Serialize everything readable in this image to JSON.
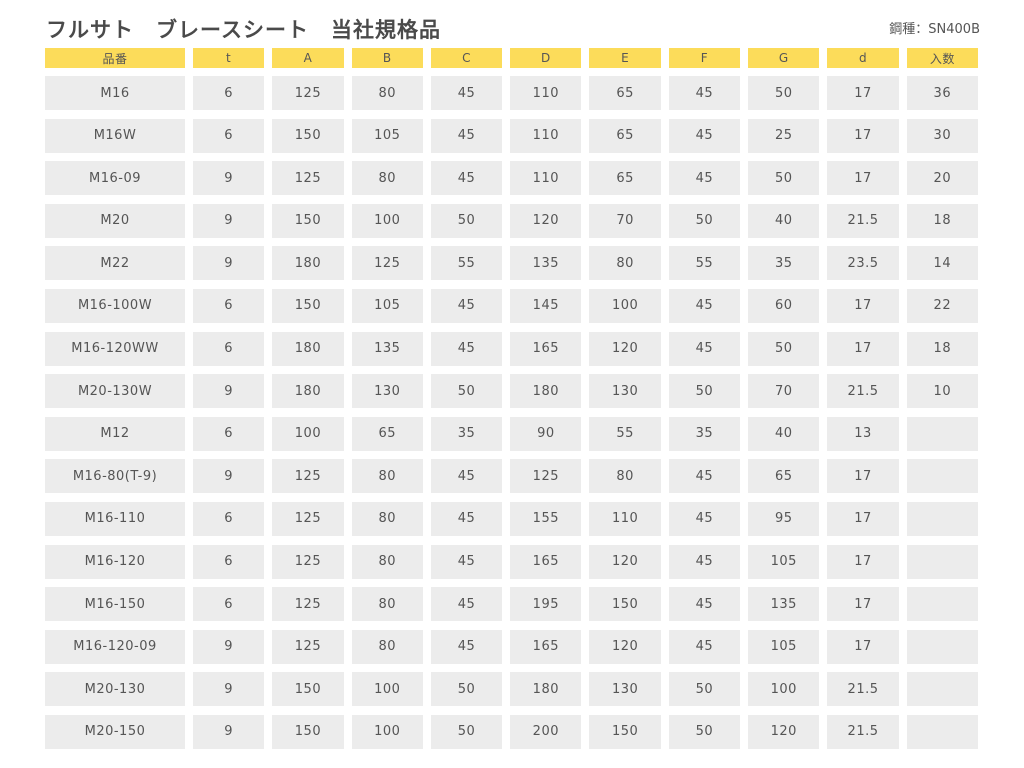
{
  "title": "フルサト　ブレースシート　当社規格品",
  "material_label": "鋼種：SN400B",
  "table": {
    "headers": [
      "品番",
      "t",
      "A",
      "B",
      "C",
      "D",
      "E",
      "F",
      "G",
      "d",
      "入数"
    ],
    "rows": [
      [
        "M16",
        "6",
        "125",
        "80",
        "45",
        "110",
        "65",
        "45",
        "50",
        "17",
        "36"
      ],
      [
        "M16W",
        "6",
        "150",
        "105",
        "45",
        "110",
        "65",
        "45",
        "25",
        "17",
        "30"
      ],
      [
        "M16-09",
        "9",
        "125",
        "80",
        "45",
        "110",
        "65",
        "45",
        "50",
        "17",
        "20"
      ],
      [
        "M20",
        "9",
        "150",
        "100",
        "50",
        "120",
        "70",
        "50",
        "40",
        "21.5",
        "18"
      ],
      [
        "M22",
        "9",
        "180",
        "125",
        "55",
        "135",
        "80",
        "55",
        "35",
        "23.5",
        "14"
      ],
      [
        "M16-100W",
        "6",
        "150",
        "105",
        "45",
        "145",
        "100",
        "45",
        "60",
        "17",
        "22"
      ],
      [
        "M16-120WW",
        "6",
        "180",
        "135",
        "45",
        "165",
        "120",
        "45",
        "50",
        "17",
        "18"
      ],
      [
        "M20-130W",
        "9",
        "180",
        "130",
        "50",
        "180",
        "130",
        "50",
        "70",
        "21.5",
        "10"
      ],
      [
        "M12",
        "6",
        "100",
        "65",
        "35",
        "90",
        "55",
        "35",
        "40",
        "13",
        ""
      ],
      [
        "M16-80(T-9)",
        "9",
        "125",
        "80",
        "45",
        "125",
        "80",
        "45",
        "65",
        "17",
        ""
      ],
      [
        "M16-110",
        "6",
        "125",
        "80",
        "45",
        "155",
        "110",
        "45",
        "95",
        "17",
        ""
      ],
      [
        "M16-120",
        "6",
        "125",
        "80",
        "45",
        "165",
        "120",
        "45",
        "105",
        "17",
        ""
      ],
      [
        "M16-150",
        "6",
        "125",
        "80",
        "45",
        "195",
        "150",
        "45",
        "135",
        "17",
        ""
      ],
      [
        "M16-120-09",
        "9",
        "125",
        "80",
        "45",
        "165",
        "120",
        "45",
        "105",
        "17",
        ""
      ],
      [
        "M20-130",
        "9",
        "150",
        "100",
        "50",
        "180",
        "130",
        "50",
        "100",
        "21.5",
        ""
      ],
      [
        "M20-150",
        "9",
        "150",
        "100",
        "50",
        "200",
        "150",
        "50",
        "120",
        "21.5",
        ""
      ]
    ]
  },
  "colors": {
    "header_bg": "#fcdc5a",
    "cell_bg": "#ececec",
    "text": "#555555"
  }
}
